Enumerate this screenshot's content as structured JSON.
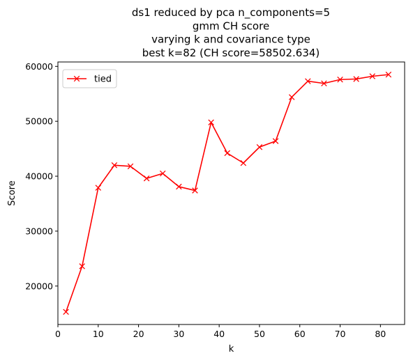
{
  "chart_data": {
    "type": "line",
    "title_lines": [
      "ds1 reduced by pca n_components=5",
      "gmm CH score",
      "varying k and covariance type",
      "best k=82 (CH score=58502.634)"
    ],
    "xlabel": "k",
    "ylabel": "Score",
    "xlim": [
      -0.0,
      86.0
    ],
    "ylim": [
      13000,
      60800
    ],
    "xticks": [
      0,
      10,
      20,
      30,
      40,
      50,
      60,
      70,
      80
    ],
    "yticks": [
      20000,
      30000,
      40000,
      50000,
      60000
    ],
    "grid": false,
    "legend": {
      "position": "upper-left",
      "entries": [
        "tied"
      ]
    },
    "series": [
      {
        "name": "tied",
        "color": "#ff0000",
        "marker": "x",
        "x": [
          2,
          6,
          10,
          14,
          18,
          22,
          26,
          30,
          34,
          38,
          42,
          46,
          50,
          54,
          58,
          62,
          66,
          70,
          74,
          78,
          82
        ],
        "y": [
          15300,
          23600,
          37900,
          42000,
          41800,
          39600,
          40500,
          38100,
          37400,
          49800,
          44200,
          42400,
          45300,
          46400,
          54400,
          57300,
          56900,
          57600,
          57700,
          58200,
          58503
        ]
      }
    ]
  }
}
